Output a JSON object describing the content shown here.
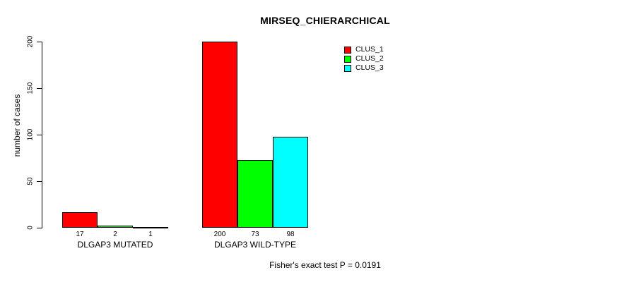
{
  "chart_data": {
    "type": "bar",
    "title": "MIRSEQ_CHIERARCHICAL",
    "ylabel": "number of cases",
    "xlabel": "",
    "categories": [
      "DLGAP3 MUTATED",
      "DLGAP3 WILD-TYPE"
    ],
    "series": [
      {
        "name": "CLUS_1",
        "color": "#ff0000",
        "values": [
          17,
          200
        ]
      },
      {
        "name": "CLUS_2",
        "color": "#00ff00",
        "values": [
          2,
          73
        ]
      },
      {
        "name": "CLUS_3",
        "color": "#00ffff",
        "values": [
          1,
          98
        ]
      }
    ],
    "bar_value_labels": [
      [
        "17",
        "2",
        "1"
      ],
      [
        "200",
        "73",
        "98"
      ]
    ],
    "yticks": [
      0,
      50,
      100,
      150,
      200
    ],
    "ylim": [
      0,
      200
    ],
    "grid": false,
    "legend_position": "top-right",
    "annotation": "Fisher's exact test P = 0.0191",
    "colors": {
      "bar_border": "#000000",
      "axis": "#000000",
      "text": "#000000",
      "background": "#ffffff"
    }
  }
}
